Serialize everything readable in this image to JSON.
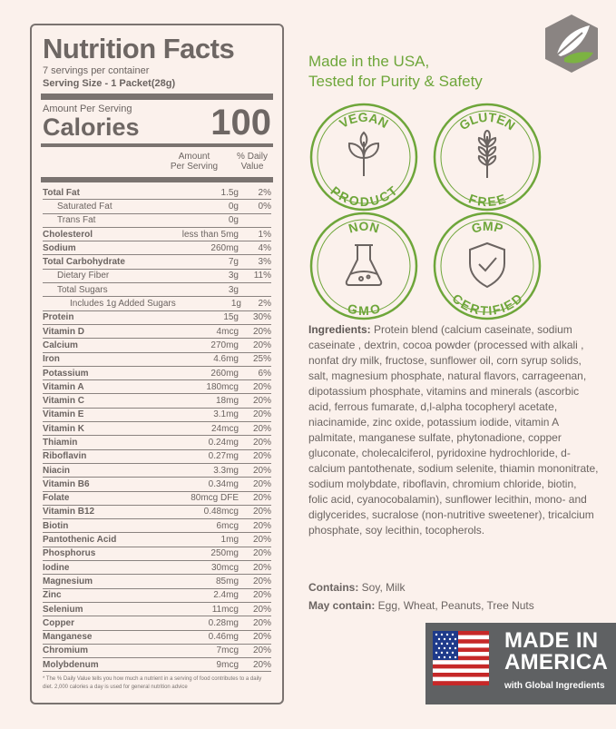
{
  "nutrition": {
    "title": "Nutrition Facts",
    "servings": "7 servings per container",
    "serving_size": "Serving Size  - 1 Packet(28g)",
    "amount_per_serving": "Amount Per Serving",
    "calories_label": "Calories",
    "calories_value": "100",
    "col_amount": "Amount\nPer Serving",
    "col_dv": "% Daily\nValue",
    "rows": [
      {
        "name": "Total Fat",
        "amount": "1.5g",
        "dv": "2%",
        "style": "b"
      },
      {
        "name": "Saturated Fat",
        "amount": "0g",
        "dv": "0%",
        "style": "i1"
      },
      {
        "name": "Trans Fat",
        "amount": "0g",
        "dv": "",
        "style": "i1"
      },
      {
        "name": "Cholesterol",
        "amount": "less than 5mg",
        "dv": "1%",
        "style": "b"
      },
      {
        "name": "Sodium",
        "amount": "260mg",
        "dv": "4%",
        "style": "b"
      },
      {
        "name": "Total Carbohydrate",
        "amount": "7g",
        "dv": "3%",
        "style": "b"
      },
      {
        "name": "Dietary Fiber",
        "amount": "3g",
        "dv": "11%",
        "style": "i1"
      },
      {
        "name": "Total Sugars",
        "amount": "3g",
        "dv": "",
        "style": "i1"
      },
      {
        "name": "Includes 1g Added Sugars",
        "amount": "1g",
        "dv": "2%",
        "style": "i2"
      },
      {
        "name": "Protein",
        "amount": "15g",
        "dv": "30%",
        "style": "b"
      },
      {
        "name": "Vitamin D",
        "amount": "4mcg",
        "dv": "20%",
        "style": "b"
      },
      {
        "name": "Calcium",
        "amount": "270mg",
        "dv": "20%",
        "style": "b"
      },
      {
        "name": "Iron",
        "amount": "4.6mg",
        "dv": "25%",
        "style": "b"
      },
      {
        "name": "Potassium",
        "amount": "260mg",
        "dv": "6%",
        "style": "b"
      },
      {
        "name": "Vitamin A",
        "amount": "180mcg",
        "dv": "20%",
        "style": "b"
      },
      {
        "name": "Vitamin C",
        "amount": "18mg",
        "dv": "20%",
        "style": "b"
      },
      {
        "name": "Vitamin E",
        "amount": "3.1mg",
        "dv": "20%",
        "style": "b"
      },
      {
        "name": "Vitamin K",
        "amount": "24mcg",
        "dv": "20%",
        "style": "b"
      },
      {
        "name": "Thiamin",
        "amount": "0.24mg",
        "dv": "20%",
        "style": "b"
      },
      {
        "name": "Riboflavin",
        "amount": "0.27mg",
        "dv": "20%",
        "style": "b"
      },
      {
        "name": "Niacin",
        "amount": "3.3mg",
        "dv": "20%",
        "style": "b"
      },
      {
        "name": "Vitamin B6",
        "amount": "0.34mg",
        "dv": "20%",
        "style": "b"
      },
      {
        "name": "Folate",
        "amount": "80mcg DFE",
        "dv": "20%",
        "style": "b"
      },
      {
        "name": "Vitamin B12",
        "amount": "0.48mcg",
        "dv": "20%",
        "style": "b"
      },
      {
        "name": "Biotin",
        "amount": "6mcg",
        "dv": "20%",
        "style": "b"
      },
      {
        "name": "Pantothenic Acid",
        "amount": "1mg",
        "dv": "20%",
        "style": "b"
      },
      {
        "name": "Phosphorus",
        "amount": "250mg",
        "dv": "20%",
        "style": "b"
      },
      {
        "name": "Iodine",
        "amount": "30mcg",
        "dv": "20%",
        "style": "b"
      },
      {
        "name": "Magnesium",
        "amount": "85mg",
        "dv": "20%",
        "style": "b"
      },
      {
        "name": "Zinc",
        "amount": "2.4mg",
        "dv": "20%",
        "style": "b"
      },
      {
        "name": "Selenium",
        "amount": "11mcg",
        "dv": "20%",
        "style": "b"
      },
      {
        "name": "Copper",
        "amount": "0.28mg",
        "dv": "20%",
        "style": "b"
      },
      {
        "name": "Manganese",
        "amount": "0.46mg",
        "dv": "20%",
        "style": "b"
      },
      {
        "name": "Chromium",
        "amount": "7mcg",
        "dv": "20%",
        "style": "b"
      },
      {
        "name": "Molybdenum",
        "amount": "9mcg",
        "dv": "20%",
        "style": "b"
      }
    ],
    "footnote": "* The % Daily Value tells you how much a nutrient in a serving of food contributes to a daily diet. 2,000 calories a day is used for general nutrition advice"
  },
  "tagline": {
    "line1": "Made in the USA,",
    "line2": "Tested for Purity & Safety"
  },
  "badges": [
    {
      "top": "VEGAN",
      "bottom": "PRODUCT",
      "icon": "plant-icon"
    },
    {
      "top": "GLUTEN",
      "bottom": "FREE",
      "icon": "wheat-icon"
    },
    {
      "top": "NON",
      "bottom": "GMO",
      "icon": "flask-icon"
    },
    {
      "top": "GMP",
      "bottom": "CERTIFIED",
      "icon": "shield-check-icon"
    }
  ],
  "ingredients": {
    "label": "Ingredients:",
    "text": " Protein blend (calcium caseinate, sodium caseinate , dextrin, cocoa powder (processed with alkali , nonfat dry milk, fructose, sunflower oil, corn syrup solids, salt, magnesium phosphate, natural flavors, carrageenan, dipotassium phosphate, vitamins and minerals (ascorbic acid, ferrous fumarate, d,l-alpha tocopheryl acetate, niacinamide, zinc oxide, potassium iodide, vitamin A palmitate, manganese sulfate, phytonadione, copper gluconate, cholecalciferol, pyridoxine hydrochloride, d-calcium pantothenate, sodium selenite, thiamin mononitrate, sodium molybdate, riboflavin, chromium chloride, biotin, folic acid, cyanocobalamin), sunflower lecithin, mono- and diglycerides, sucralose (non-nutritive sweetener), tricalcium phosphate, soy lecithin, tocopherols.",
    "contains_label": "Contains:",
    "contains_text": " Soy, Milk",
    "may_label": "May contain:",
    "may_text": " Egg, Wheat, Peanuts, Tree Nuts"
  },
  "made_in_america": {
    "line1": "MADE IN",
    "line2": "AMERICA",
    "sub": "with Global Ingredients"
  },
  "colors": {
    "accent_green": "#6ea63a",
    "text_gray": "#6b6461",
    "background": "#fbf1ec",
    "badge_gray": "#5f6163"
  }
}
